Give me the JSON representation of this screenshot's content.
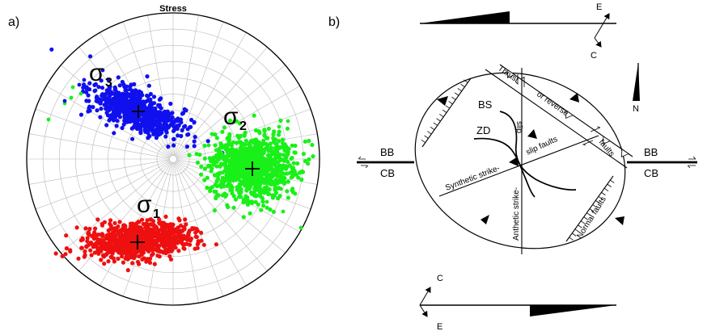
{
  "panel_a": {
    "label": "a)",
    "title": "Stress",
    "sigma_symbol": "σ",
    "clusters": [
      {
        "id": "sigma3",
        "subscript": "3",
        "color": "#1010ee"
      },
      {
        "id": "sigma2",
        "subscript": "2",
        "color": "#19f019"
      },
      {
        "id": "sigma1",
        "subscript": "1",
        "color": "#ee1010"
      }
    ]
  },
  "panel_b": {
    "label": "b)",
    "bb_left": "BB",
    "cb_left": "CB",
    "bb_right": "BB",
    "cb_right": "CB",
    "bs": "BS",
    "zd": "ZD",
    "thrust": "Thrust",
    "or_reverse": "or reverse",
    "faults_label": "faults",
    "slip_faults": "slip faults",
    "slip_label": "slip",
    "synthetic": "Synthetic strike-",
    "antithetic": "Anthetic strike-",
    "normal_faults": "Normal faults",
    "north": "N",
    "compass_top": {
      "e": "E",
      "c": "C"
    },
    "compass_bottom": {
      "c": "C",
      "e": "E"
    }
  }
}
